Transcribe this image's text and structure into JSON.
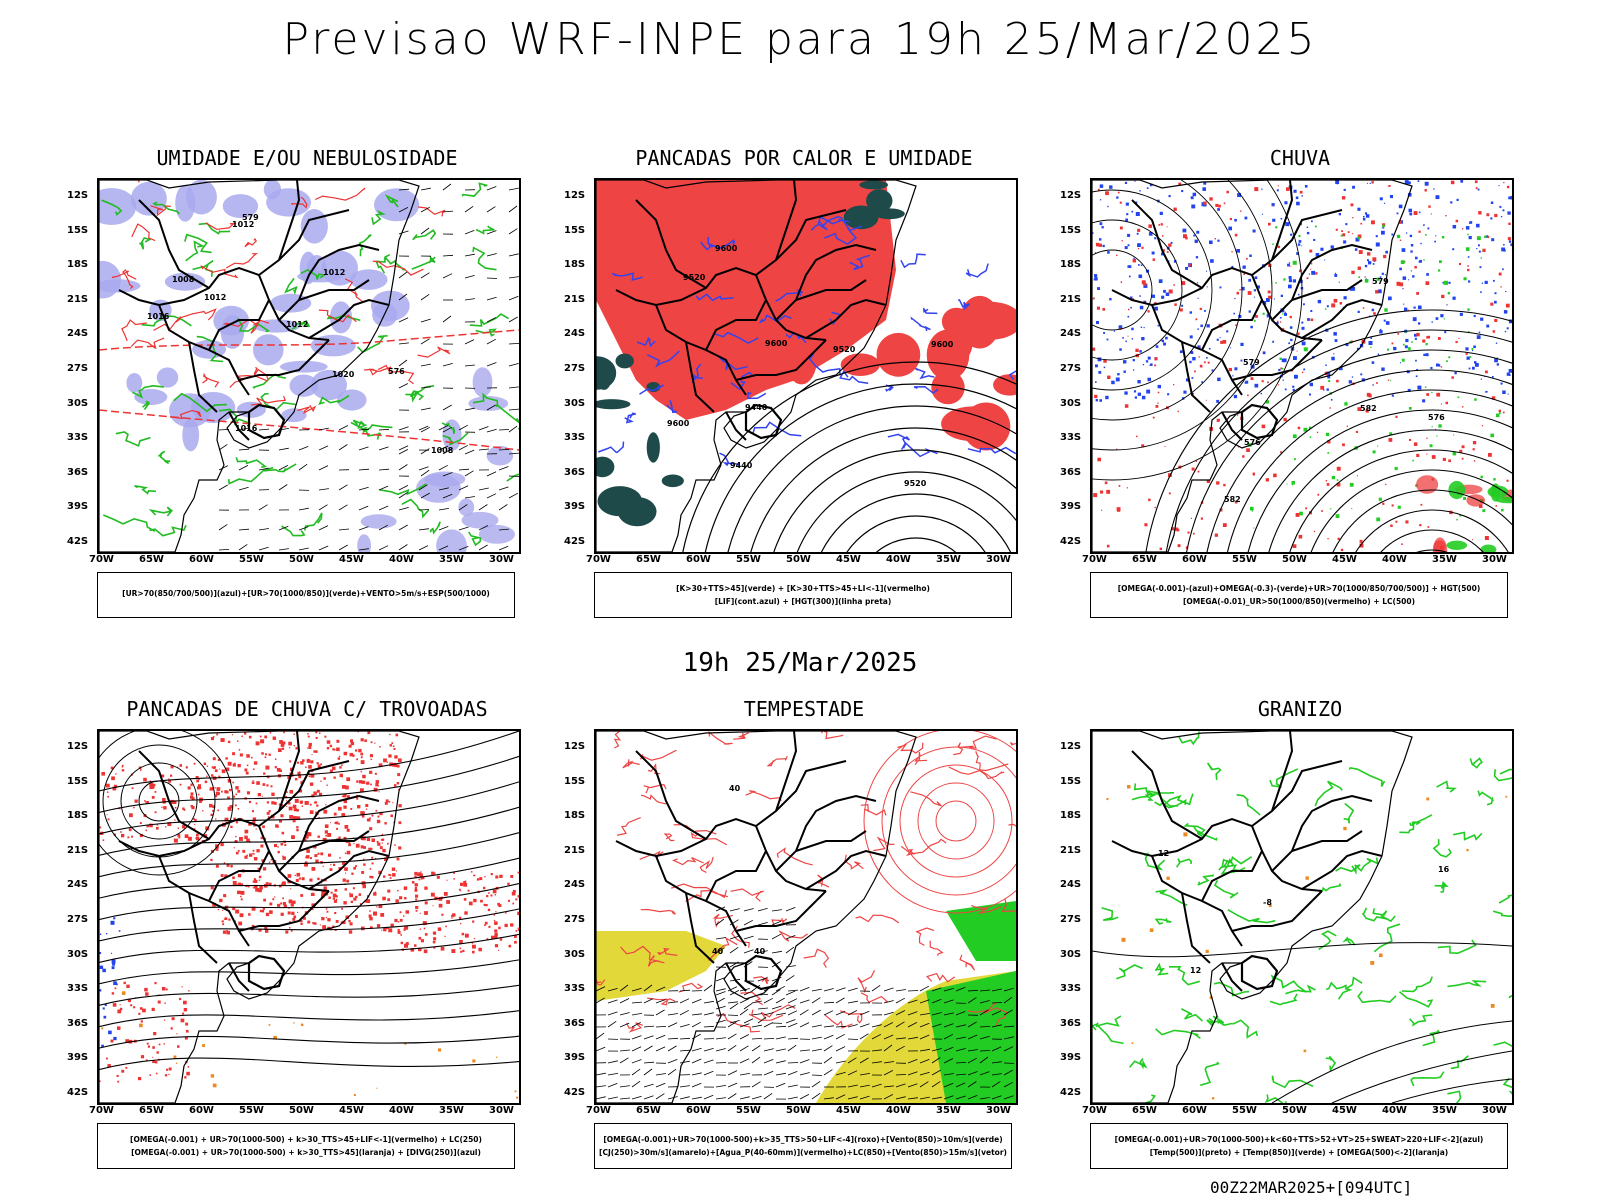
{
  "title": "Previsao WRF-INPE  para 19h 25/Mar/2025",
  "subtitle": "19h 25/Mar/2025",
  "footer": "00Z22MAR2025+[094UTC]",
  "axes": {
    "lat_labels": [
      "12S",
      "15S",
      "18S",
      "21S",
      "24S",
      "27S",
      "30S",
      "33S",
      "36S",
      "39S",
      "42S"
    ],
    "lon_labels": [
      "70W",
      "65W",
      "60W",
      "55W",
      "50W",
      "45W",
      "40W",
      "35W",
      "30W"
    ]
  },
  "panels": [
    {
      "title": "UMIDADE E/OU NEBULOSIDADE",
      "legend": [
        "[UR>70(850/700/500)](azul)+[UR>70(1000/850)](verde)+VENTO>5m/s+ESP(500/1000)"
      ],
      "contour_labels": [
        "1012",
        "1008",
        "1012",
        "1012",
        "1016",
        "1012",
        "1016",
        "1020",
        "1008",
        "576",
        "579"
      ]
    },
    {
      "title": "PANCADAS POR CALOR E UMIDADE",
      "legend": [
        "[K>30+TTS>45](verde) + [K>30+TTS>45+LI<-1](vermelho)",
        "[LIF](cont.azul) + [HGT(300)](linha preta)"
      ],
      "contour_labels": [
        "9600",
        "9600",
        "9600",
        "9520",
        "9600",
        "9520",
        "9520",
        "9440",
        "9440"
      ]
    },
    {
      "title": "CHUVA",
      "legend": [
        "[OMEGA(-0.001)-(azul)+OMEGA(-0.3)-(verde)+UR>70(1000/850/700/500)] + HGT(500)",
        "[OMEGA(-0.01)_UR>50(1000/850)(vermelho) + LC(500)"
      ],
      "contour_labels": [
        "582",
        "582",
        "579",
        "576",
        "576",
        "579"
      ]
    },
    {
      "title": "PANCADAS DE CHUVA C/ TROVOADAS",
      "legend": [
        "[OMEGA(-0.001) + UR>70(1000-500) + k>30_TTS>45+LIF<-1](vermelho) + LC(250)",
        "[OMEGA(-0.001) + UR>70(1000-500) + k>30_TTS>45](laranja) + [DIVG(250)](azul)"
      ],
      "contour_labels": []
    },
    {
      "title": "TEMPESTADE",
      "legend": [
        "[OMEGA(-0.001)+UR>70(1000-500)+k>35_TTS>50+LIF<-4](roxo)+[Vento(850)>10m/s](verde)",
        "[CJ(250)>30m/s](amarelo)+[Agua_P(40-60mm)](vermelho)+LC(850)+[Vento(850)>15m/s](vetor)"
      ],
      "contour_labels": [
        "40",
        "40",
        "40"
      ]
    },
    {
      "title": "GRANIZO",
      "legend": [
        "[OMEGA(-0.001)+UR>70(1000-500)+k<60+TTS>52+VT>25+SWEAT>220+LIF<-2](azul)",
        "[Temp(500)](preto) + [Temp(850)](verde) + [OMEGA(500)<-2](laranja)"
      ],
      "contour_labels": [
        "-8",
        "12",
        "12",
        "16"
      ]
    }
  ]
}
